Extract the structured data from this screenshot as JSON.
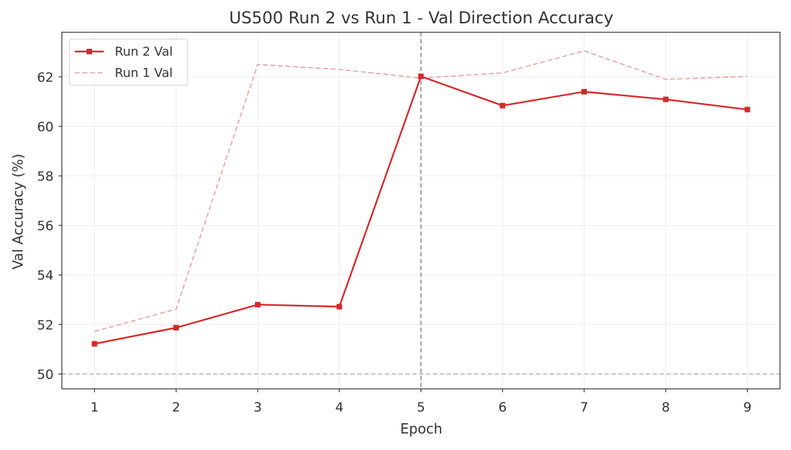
{
  "chart_data": {
    "type": "line",
    "title": "US500 Run 2 vs Run 1 - Val Direction Accuracy",
    "xlabel": "Epoch",
    "ylabel": "Val Accuracy (%)",
    "x": [
      1,
      2,
      3,
      4,
      5,
      6,
      7,
      8,
      9
    ],
    "xlim": [
      0.6,
      9.4
    ],
    "ylim": [
      49.4,
      63.8
    ],
    "xticks": [
      1,
      2,
      3,
      4,
      5,
      6,
      7,
      8,
      9
    ],
    "yticks": [
      50,
      52,
      54,
      56,
      58,
      60,
      62
    ],
    "grid": true,
    "legend_position": "top-left",
    "series": [
      {
        "name": "Run 2 Val",
        "values": [
          51.22,
          51.87,
          52.8,
          52.72,
          62.02,
          60.84,
          61.4,
          61.09,
          60.68
        ],
        "color": "#d62728",
        "line_style": "solid",
        "marker": "square"
      },
      {
        "name": "Run 1 Val",
        "values": [
          51.72,
          52.62,
          62.5,
          62.3,
          61.95,
          62.16,
          63.05,
          61.9,
          62.02
        ],
        "color": "#eb9d9d",
        "line_style": "dashed",
        "marker": "none"
      }
    ],
    "reference_lines": [
      {
        "orientation": "horizontal",
        "value": 50,
        "color": "#b0b0b0",
        "style": "dashed"
      },
      {
        "orientation": "vertical",
        "value": 5,
        "color": "#808080",
        "style": "dashed"
      }
    ]
  }
}
